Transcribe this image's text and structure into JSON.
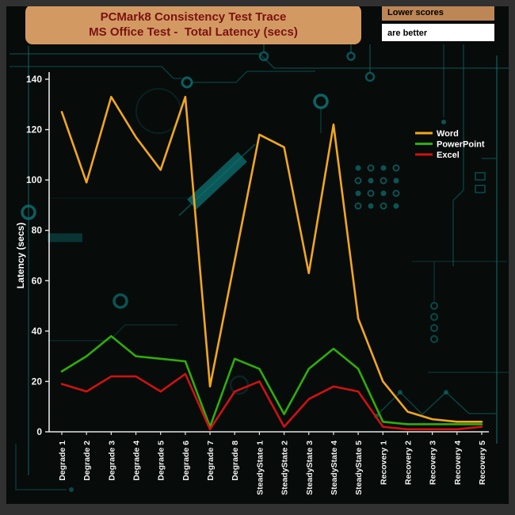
{
  "header": {
    "title_line1": "PCMark8 Consistency Test Trace",
    "title_line2": "MS Office Test -  Total Latency (secs)",
    "note_line1": "Lower scores",
    "note_line2": "are better"
  },
  "colors": {
    "title_box_bg": "#d29a62",
    "title_text": "#7c1113",
    "note_tan_bg": "#bd8655",
    "note_white_bg": "#ffffff",
    "note_text": "#000000",
    "axis": "#e6e6e6",
    "tick_label": "#f2f2f2",
    "legend_text": "#ffffff",
    "circuit": "#0e7272",
    "background": "#070b0a",
    "frame": "#313131",
    "word_series": "#f2a71e",
    "powerpoint_series": "#2fae08",
    "excel_series": "#cf1212"
  },
  "chart_data": {
    "type": "line",
    "title": "PCMark8 Consistency Test Trace",
    "subtitle": "MS Office Test -  Total Latency (secs)",
    "ylabel": "Latency (secs)",
    "xlabel": "",
    "ylim": [
      0,
      140
    ],
    "ytick_step": 20,
    "grid": false,
    "legend_position": "upper right",
    "categories": [
      "Degrade 1",
      "Degrade 2",
      "Degrade 3",
      "Degrade 4",
      "Degrade 5",
      "Degrade 6",
      "Degrade 7",
      "Degrade 8",
      "SteadyState 1",
      "SteadyState 2",
      "SteadyState 3",
      "SteadyState 4",
      "SteadyState 5",
      "Recovery 1",
      "Recovery 2",
      "Recovery 3",
      "Recovery 4",
      "Recovery 5"
    ],
    "series": [
      {
        "name": "Word",
        "color": "#f2a71e",
        "values": [
          127,
          99,
          133,
          117,
          104,
          133,
          18,
          68,
          118,
          113,
          63,
          122,
          45,
          20,
          8,
          5,
          4,
          4
        ]
      },
      {
        "name": "PowerPoint",
        "color": "#2fae08",
        "values": [
          24,
          30,
          38,
          30,
          29,
          28,
          2,
          29,
          25,
          7,
          25,
          33,
          25,
          4,
          3,
          3,
          3,
          3
        ]
      },
      {
        "name": "Excel",
        "color": "#cf1212",
        "values": [
          19,
          16,
          22,
          22,
          16,
          23,
          1,
          16,
          20,
          2,
          13,
          18,
          16,
          2,
          1,
          1,
          1,
          2
        ]
      }
    ]
  }
}
